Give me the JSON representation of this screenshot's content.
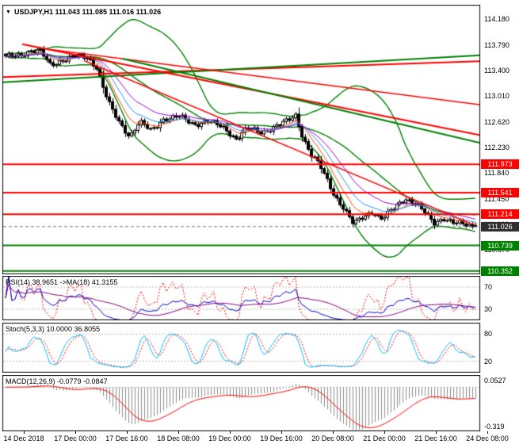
{
  "chart": {
    "title": "USDJPY,H1 111.043 111.085 111.016 111.026",
    "symbol": "USDJPY",
    "timeframe": "H1"
  },
  "colors": {
    "bull": "#FFFFFF",
    "bear": "#000000",
    "outline": "#000000",
    "bollinger": "#008000",
    "resistance": "#FF0000",
    "support": "#008000",
    "current_badge": "#2F2F2F",
    "level_guide": "#B8B8B8",
    "rsi_line": "#0000CD",
    "rsi_ma": "#800080",
    "rsi_fast": "#FF0000",
    "stoch_k": "#00BFFF",
    "stoch_d": "#FF0000",
    "macd_hist": "#8C8C8C",
    "macd_signal": "#FF0000"
  },
  "axes": {
    "price_ticks": [
      114.18,
      113.79,
      113.4,
      113.01,
      112.62,
      112.23,
      111.84,
      111.45,
      111.06,
      110.67
    ],
    "time_labels": [
      "14 Dec 2018",
      "17 Dec 00:00",
      "17 Dec 16:00",
      "18 Dec 08:00",
      "19 Dec 00:00",
      "19 Dec 16:00",
      "20 Dec 08:00",
      "21 Dec 00:00",
      "21 Dec 16:00",
      "24 Dec 08:00"
    ]
  },
  "chart_data": {
    "type": "candlestick",
    "title": "USDJPY,H1",
    "symbol": "USDJPY",
    "timeframe": "H1",
    "bars": 150,
    "y_range": [
      110.3,
      114.4
    ],
    "ohlc_current": {
      "open": 111.043,
      "high": 111.085,
      "low": 111.016,
      "close": 111.026
    },
    "price_path_anchors": [
      [
        0.0,
        113.6
      ],
      [
        0.03,
        113.64
      ],
      [
        0.055,
        113.7
      ],
      [
        0.075,
        113.68
      ],
      [
        0.095,
        113.48
      ],
      [
        0.115,
        113.55
      ],
      [
        0.15,
        113.62
      ],
      [
        0.175,
        113.6
      ],
      [
        0.195,
        113.45
      ],
      [
        0.21,
        113.1
      ],
      [
        0.225,
        112.82
      ],
      [
        0.245,
        112.58
      ],
      [
        0.265,
        112.4
      ],
      [
        0.285,
        112.62
      ],
      [
        0.31,
        112.48
      ],
      [
        0.335,
        112.66
      ],
      [
        0.37,
        112.7
      ],
      [
        0.4,
        112.58
      ],
      [
        0.43,
        112.63
      ],
      [
        0.465,
        112.52
      ],
      [
        0.49,
        112.36
      ],
      [
        0.515,
        112.52
      ],
      [
        0.545,
        112.46
      ],
      [
        0.575,
        112.55
      ],
      [
        0.6,
        112.63
      ],
      [
        0.618,
        112.72
      ],
      [
        0.632,
        112.4
      ],
      [
        0.65,
        112.12
      ],
      [
        0.668,
        111.96
      ],
      [
        0.688,
        111.68
      ],
      [
        0.7,
        111.5
      ],
      [
        0.718,
        111.32
      ],
      [
        0.74,
        111.06
      ],
      [
        0.758,
        111.16
      ],
      [
        0.778,
        111.26
      ],
      [
        0.8,
        111.14
      ],
      [
        0.825,
        111.3
      ],
      [
        0.85,
        111.46
      ],
      [
        0.87,
        111.38
      ],
      [
        0.89,
        111.26
      ],
      [
        0.912,
        111.08
      ],
      [
        0.932,
        111.16
      ],
      [
        0.952,
        111.08
      ],
      [
        0.975,
        111.06
      ],
      [
        1.0,
        111.026
      ]
    ],
    "levels": [
      {
        "price": 111.973,
        "label": "111.973",
        "color": "#FF0000",
        "kind": "resistance"
      },
      {
        "price": 111.541,
        "label": "111.541",
        "color": "#FF0000",
        "kind": "resistance"
      },
      {
        "price": 111.214,
        "label": "111.214",
        "color": "#FF0000",
        "kind": "resistance"
      },
      {
        "price": 111.026,
        "label": "111.026",
        "color": "#2F2F2F",
        "kind": "current",
        "current": true
      },
      {
        "price": 110.739,
        "label": "110.739",
        "color": "#008000",
        "kind": "support"
      },
      {
        "price": 110.352,
        "label": "110.352",
        "color": "#008000",
        "kind": "support"
      }
    ],
    "trendlines": [
      {
        "x1": 0.0,
        "p1": 113.3,
        "x2": 1.0,
        "p2": 113.54,
        "color": "#FF0000",
        "w": 2
      },
      {
        "x1": 0.0,
        "p1": 113.22,
        "x2": 1.0,
        "p2": 113.63,
        "color": "#008000",
        "w": 2
      },
      {
        "x1": 0.04,
        "p1": 113.8,
        "x2": 1.0,
        "p2": 112.42,
        "color": "#FF0000",
        "w": 2
      },
      {
        "x1": 0.1,
        "p1": 113.72,
        "x2": 1.0,
        "p2": 112.88,
        "color": "#FF0000",
        "w": 1.5
      },
      {
        "x1": 0.17,
        "p1": 113.55,
        "x2": 0.98,
        "p2": 111.08,
        "color": "#FF0000",
        "w": 1.5
      },
      {
        "x1": 0.25,
        "p1": 113.58,
        "x2": 1.0,
        "p2": 112.3,
        "color": "#008000",
        "w": 2
      }
    ],
    "moving_averages": [
      {
        "period": 8,
        "color": "#FF4500"
      },
      {
        "period": 13,
        "color": "#1E90FF"
      },
      {
        "period": 21,
        "color": "#9400D3"
      }
    ],
    "bollinger": {
      "period": 34,
      "deviation": 2
    },
    "indicators": {
      "rsi": {
        "label": "RSI(14) 38.9651 ->MA(18) 41.3155",
        "period": 14,
        "value": 38.9651,
        "ma_period": 18,
        "ma_value": 41.3155,
        "levels": [
          70,
          30
        ],
        "range": [
          10,
          90
        ]
      },
      "stoch": {
        "label": "Stoch(5,3,3) 10.0000 36.8055",
        "k_value": 10.0,
        "d_value": 36.8055,
        "levels": [
          80,
          20
        ],
        "range": [
          -5,
          105
        ]
      },
      "macd": {
        "label": "MACD(12,26,9) -0.0779 -0.0847",
        "value": -0.0779,
        "signal": -0.0847,
        "axis_labels": [
          {
            "value": 0.0527,
            "label": "0.0527"
          },
          {
            "value": -0.319,
            "label": "-0.319"
          }
        ],
        "range": [
          0.1,
          -0.36
        ]
      }
    }
  }
}
